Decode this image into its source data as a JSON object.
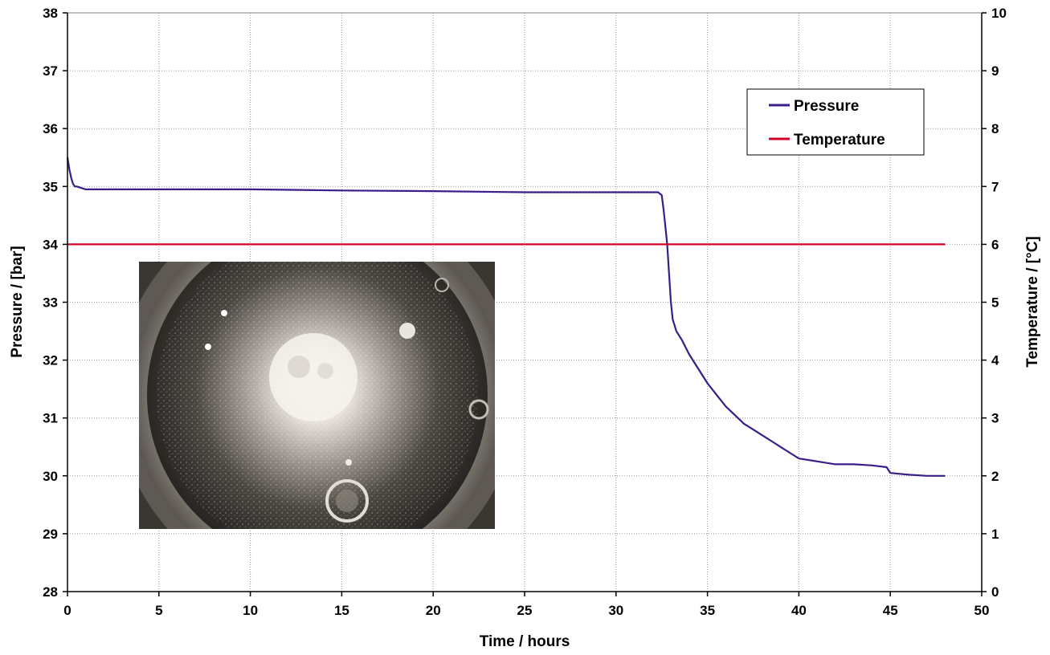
{
  "chart_data": {
    "type": "line",
    "title": "",
    "xlabel": "Time / hours",
    "ylabel": "Pressure / [bar]",
    "y2label": "Temperature / [°C]",
    "xlim": [
      0,
      50
    ],
    "ylim": [
      28,
      38
    ],
    "y2lim": [
      0,
      10
    ],
    "x_ticks": [
      "0",
      "5",
      "10",
      "15",
      "20",
      "25",
      "30",
      "35",
      "40",
      "45",
      "50"
    ],
    "y_ticks": [
      "28",
      "29",
      "30",
      "31",
      "32",
      "33",
      "34",
      "35",
      "36",
      "37",
      "38"
    ],
    "y2_ticks": [
      "0",
      "1",
      "2",
      "3",
      "4",
      "5",
      "6",
      "7",
      "8",
      "9",
      "10"
    ],
    "grid": true,
    "legend_position": "top-right",
    "series": [
      {
        "name": "Pressure",
        "axis": "left",
        "color": "#3a1d8a",
        "x": [
          0,
          0.1,
          0.2,
          0.3,
          0.4,
          0.5,
          1,
          5,
          10,
          15,
          20,
          25,
          30,
          32,
          32.3,
          32.5,
          32.6,
          32.7,
          32.8,
          32.9,
          33.0,
          33.1,
          33.3,
          33.6,
          34.0,
          34.5,
          35.0,
          35.5,
          36.0,
          36.5,
          37.0,
          37.5,
          38.0,
          38.5,
          39.0,
          39.5,
          40.0,
          41.0,
          42.0,
          43.0,
          44.0,
          44.8,
          45.0,
          46.0,
          47.0,
          48.0
        ],
        "y": [
          35.5,
          35.3,
          35.15,
          35.05,
          35.0,
          35.0,
          34.95,
          34.95,
          34.95,
          34.93,
          34.92,
          34.9,
          34.9,
          34.9,
          34.9,
          34.85,
          34.6,
          34.3,
          34.0,
          33.5,
          33.0,
          32.7,
          32.5,
          32.35,
          32.1,
          31.85,
          31.6,
          31.4,
          31.2,
          31.05,
          30.9,
          30.8,
          30.7,
          30.6,
          30.5,
          30.4,
          30.3,
          30.25,
          30.2,
          30.2,
          30.18,
          30.15,
          30.05,
          30.02,
          30.0,
          30.0
        ]
      },
      {
        "name": "Temperature",
        "axis": "right",
        "color": "#d4002a",
        "x": [
          0,
          48
        ],
        "y": [
          6.0,
          6.0
        ]
      }
    ],
    "inset_image": "photograph-of-pressure-cell"
  }
}
